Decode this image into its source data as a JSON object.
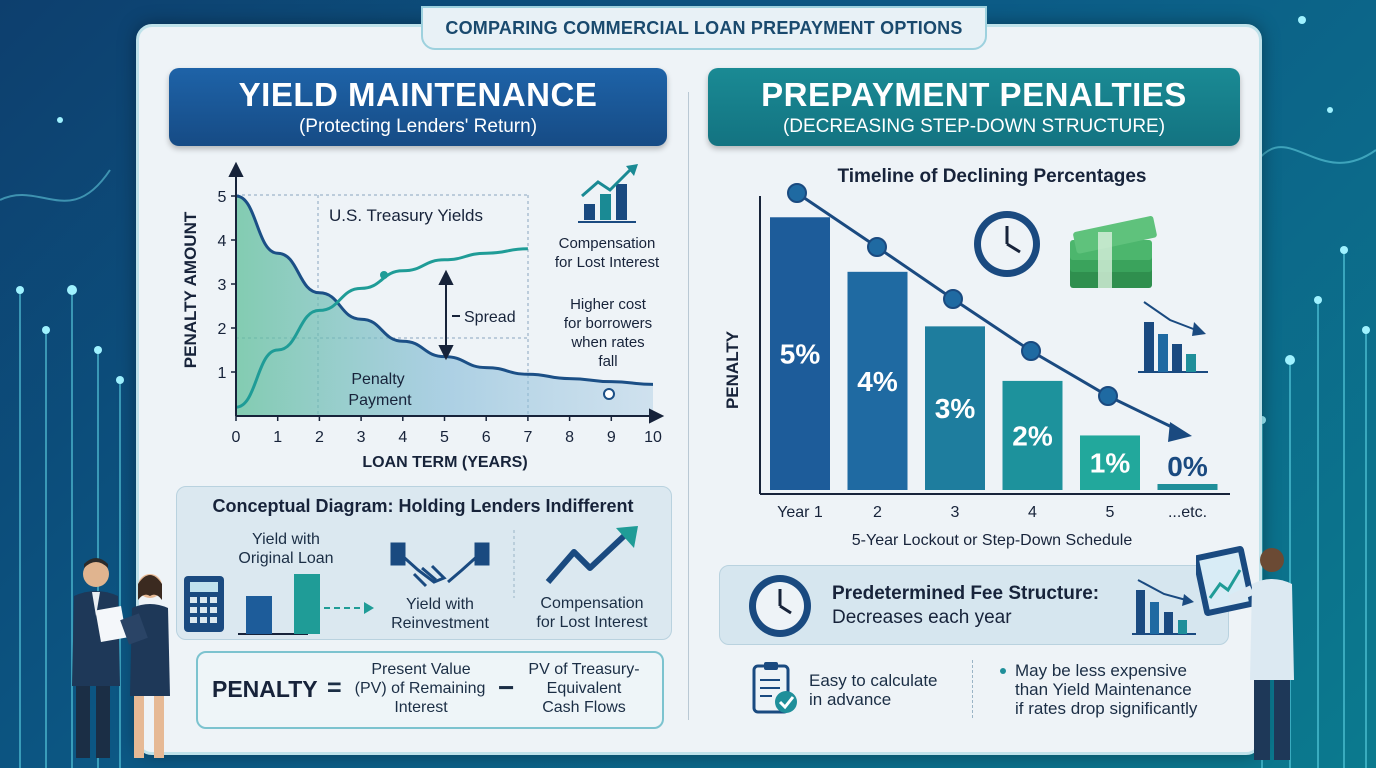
{
  "title": "COMPARING COMMERCIAL LOAN PREPAYMENT OPTIONS",
  "left": {
    "header": "YIELD MAINTENANCE",
    "subheader": "(Protecting Lenders' Return)",
    "chart": {
      "y_axis_label": "PENALTY AMOUNT",
      "x_axis_label": "LOAN TERM (YEARS)",
      "y_ticks": [
        "1",
        "2",
        "3",
        "4",
        "5"
      ],
      "x_ticks": [
        "0",
        "1",
        "2",
        "3",
        "4",
        "5",
        "6",
        "7",
        "8",
        "9",
        "10"
      ],
      "treasury_label": "U.S. Treasury Yields",
      "spread_label": "Spread",
      "penalty_label_1": "Penalty",
      "penalty_label_2": "Payment",
      "compensation_1": "Compensation",
      "compensation_2": "for Lost Interest",
      "higher_cost_1": "Higher cost",
      "higher_cost_2": "for borrowers",
      "higher_cost_3": "when rates",
      "higher_cost_4": "fall"
    },
    "concept": {
      "title": "Conceptual Diagram: Holding Lenders Indifferent",
      "yield_original_1": "Yield with",
      "yield_original_2": "Original Loan",
      "yield_reinvest_1": "Yield with",
      "yield_reinvest_2": "Reinvestment",
      "compensation_1": "Compensation",
      "compensation_2": "for Lost Interest"
    },
    "formula": {
      "penalty": "PENALTY",
      "equals": "=",
      "pv_1": "Present Value",
      "pv_2": "(PV) of Remaining",
      "pv_3": "Interest",
      "minus": "−",
      "treasury_1": "PV of Treasury-",
      "treasury_2": "Equivalent",
      "treasury_3": "Cash Flows"
    }
  },
  "right": {
    "header": "PREPAYMENT PENALTIES",
    "subheader": "(DECREASING STEP-DOWN STRUCTURE)",
    "chart_title": "Timeline of Declining Percentages",
    "y_axis_label": "PENALTY",
    "caption": "5-Year Lockout or Step-Down Schedule",
    "fee_title": "Predetermined Fee Structure:",
    "fee_sub": "Decreases each year",
    "easy_1": "Easy to calculate",
    "easy_2": "in advance",
    "cheaper_1": "May be less expensive",
    "cheaper_2": "than Yield Maintenance",
    "cheaper_3": "if rates drop significantly"
  },
  "chart_data": [
    {
      "type": "line",
      "title": "",
      "xlabel": "LOAN TERM (YEARS)",
      "ylabel": "PENALTY AMOUNT",
      "xlim": [
        0,
        10
      ],
      "ylim": [
        0,
        5
      ],
      "grid": false,
      "series": [
        {
          "name": "Penalty Payment",
          "x": [
            0,
            1,
            2,
            3,
            4,
            5,
            6,
            7,
            8,
            9,
            10
          ],
          "y": [
            5.0,
            3.7,
            2.8,
            2.2,
            1.7,
            1.35,
            1.1,
            0.95,
            0.85,
            0.78,
            0.72
          ]
        },
        {
          "name": "U.S. Treasury Yields",
          "x": [
            0,
            1,
            2,
            3,
            4,
            5,
            6,
            7
          ],
          "y": [
            0.2,
            1.5,
            2.4,
            2.9,
            3.3,
            3.55,
            3.7,
            3.8
          ]
        }
      ]
    },
    {
      "type": "bar",
      "title": "Timeline of Declining Percentages",
      "xlabel": "",
      "ylabel": "PENALTY",
      "categories": [
        "Year 1",
        "2",
        "3",
        "4",
        "5",
        "...etc."
      ],
      "values": [
        5,
        4,
        3,
        2,
        1,
        0
      ],
      "labels": [
        "5%",
        "4%",
        "3%",
        "2%",
        "1%",
        "0%"
      ],
      "ylim": [
        0,
        5.5
      ],
      "colors": [
        "#1d5c9a",
        "#1f6aa2",
        "#1e7d9e",
        "#1d929c",
        "#22a89c",
        "#1f8f9a"
      ]
    }
  ]
}
